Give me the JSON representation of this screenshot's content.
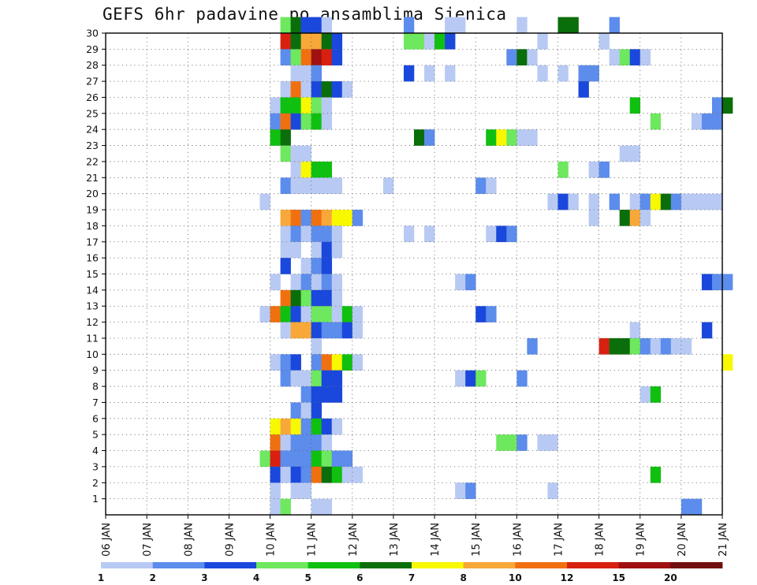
{
  "chart_data": {
    "type": "heatmap",
    "title": "GEFS 6hr padavine po ansamblima Sjenica",
    "xlabel": "",
    "ylabel": "",
    "x_ticks": [
      "06 JAN",
      "07 JAN",
      "08 JAN",
      "09 JAN",
      "10 JAN",
      "11 JAN",
      "12 JAN",
      "13 JAN",
      "14 JAN",
      "15 JAN",
      "16 JAN",
      "17 JAN",
      "18 JAN",
      "19 JAN",
      "20 JAN",
      "21 JAN"
    ],
    "y_ticks": [
      1,
      2,
      3,
      4,
      5,
      6,
      7,
      8,
      9,
      10,
      11,
      12,
      13,
      14,
      15,
      16,
      17,
      18,
      19,
      20,
      21,
      22,
      23,
      24,
      25,
      26,
      27,
      28,
      29,
      30
    ],
    "grid": "dotted",
    "colorbar": {
      "thresholds": [
        1,
        2,
        3,
        4,
        5,
        6,
        7,
        8,
        10,
        12,
        15,
        20
      ],
      "colors": [
        "#b8caf4",
        "#5c8cec",
        "#1a48dc",
        "#6ee85e",
        "#10c010",
        "#0a6e0a",
        "#f8f800",
        "#f8a838",
        "#f07010",
        "#d82010",
        "#a01010",
        "#701010"
      ]
    },
    "notes": "cells: [member, day_index(0=06 JAN), color_level 0-11] — level 0 = 1-2, 11 = >20",
    "cells": [
      [
        30,
        4.25,
        3
      ],
      [
        30,
        4.5,
        5
      ],
      [
        30,
        4.75,
        2
      ],
      [
        30,
        5,
        2
      ],
      [
        30,
        5.25,
        0
      ],
      [
        30,
        7.25,
        1
      ],
      [
        30,
        8.25,
        0
      ],
      [
        30,
        8.5,
        0
      ],
      [
        30,
        10,
        0
      ],
      [
        30,
        11,
        5
      ],
      [
        30,
        11.25,
        5
      ],
      [
        30,
        12.25,
        1
      ],
      [
        29,
        4.25,
        9
      ],
      [
        29,
        4.5,
        5
      ],
      [
        29,
        4.75,
        7
      ],
      [
        29,
        5,
        7
      ],
      [
        29,
        5.25,
        5
      ],
      [
        29,
        5.5,
        2
      ],
      [
        29,
        7.25,
        3
      ],
      [
        29,
        7.5,
        3
      ],
      [
        29,
        7.75,
        0
      ],
      [
        29,
        8,
        4
      ],
      [
        29,
        8.25,
        2
      ],
      [
        29,
        10.5,
        0
      ],
      [
        29,
        12,
        0
      ],
      [
        28,
        4.25,
        1
      ],
      [
        28,
        4.5,
        3
      ],
      [
        28,
        4.75,
        8
      ],
      [
        28,
        5,
        10
      ],
      [
        28,
        5.25,
        9
      ],
      [
        28,
        5.5,
        2
      ],
      [
        28,
        9.75,
        1
      ],
      [
        28,
        10,
        5
      ],
      [
        28,
        10.25,
        0
      ],
      [
        28,
        12.25,
        0
      ],
      [
        28,
        12.5,
        3
      ],
      [
        28,
        12.75,
        2
      ],
      [
        28,
        13,
        0
      ],
      [
        27,
        4.5,
        0
      ],
      [
        27,
        4.75,
        0
      ],
      [
        27,
        5,
        1
      ],
      [
        27,
        7.25,
        2
      ],
      [
        27,
        7.75,
        0
      ],
      [
        27,
        8.25,
        0
      ],
      [
        27,
        10.5,
        0
      ],
      [
        27,
        11,
        0
      ],
      [
        27,
        11.5,
        1
      ],
      [
        27,
        11.75,
        1
      ],
      [
        26,
        4.25,
        0
      ],
      [
        26,
        4.5,
        8
      ],
      [
        26,
        4.75,
        0
      ],
      [
        26,
        5,
        2
      ],
      [
        26,
        5.25,
        5
      ],
      [
        26,
        5.5,
        2
      ],
      [
        26,
        5.75,
        0
      ],
      [
        26,
        11.5,
        2
      ],
      [
        25,
        4,
        0
      ],
      [
        25,
        4.25,
        4
      ],
      [
        25,
        4.5,
        4
      ],
      [
        25,
        4.75,
        6
      ],
      [
        25,
        5,
        3
      ],
      [
        25,
        5.25,
        0
      ],
      [
        25,
        12.75,
        4
      ],
      [
        25,
        14.75,
        1
      ],
      [
        25,
        15,
        5
      ],
      [
        24,
        4,
        1
      ],
      [
        24,
        4.25,
        8
      ],
      [
        24,
        4.5,
        2
      ],
      [
        24,
        4.75,
        3
      ],
      [
        24,
        5,
        4
      ],
      [
        24,
        5.25,
        0
      ],
      [
        24,
        13.25,
        3
      ],
      [
        24,
        14.25,
        0
      ],
      [
        24,
        14.5,
        1
      ],
      [
        24,
        14.75,
        1
      ],
      [
        23,
        4,
        4
      ],
      [
        23,
        4.25,
        5
      ],
      [
        23,
        7.5,
        5
      ],
      [
        23,
        7.75,
        1
      ],
      [
        23,
        9.25,
        4
      ],
      [
        23,
        9.5,
        6
      ],
      [
        23,
        9.75,
        3
      ],
      [
        23,
        10,
        0
      ],
      [
        23,
        10.25,
        0
      ],
      [
        22,
        4.25,
        3
      ],
      [
        22,
        4.5,
        0
      ],
      [
        22,
        4.75,
        0
      ],
      [
        22,
        12.5,
        0
      ],
      [
        22,
        12.75,
        0
      ],
      [
        21,
        4.5,
        0
      ],
      [
        21,
        4.75,
        6
      ],
      [
        21,
        5,
        4
      ],
      [
        21,
        5.25,
        4
      ],
      [
        21,
        11,
        3
      ],
      [
        21,
        11.75,
        0
      ],
      [
        21,
        12,
        1
      ],
      [
        20,
        4.25,
        1
      ],
      [
        20,
        4.5,
        0
      ],
      [
        20,
        4.75,
        0
      ],
      [
        20,
        5,
        0
      ],
      [
        20,
        5.25,
        0
      ],
      [
        20,
        5.5,
        0
      ],
      [
        20,
        6.75,
        0
      ],
      [
        20,
        9,
        1
      ],
      [
        20,
        9.25,
        0
      ],
      [
        19,
        3.75,
        0
      ],
      [
        19,
        10.75,
        0
      ],
      [
        19,
        11,
        2
      ],
      [
        19,
        11.25,
        0
      ],
      [
        19,
        11.75,
        0
      ],
      [
        19,
        12.25,
        1
      ],
      [
        19,
        12.75,
        0
      ],
      [
        19,
        13,
        1
      ],
      [
        19,
        13.25,
        6
      ],
      [
        19,
        13.5,
        5
      ],
      [
        19,
        13.75,
        1
      ],
      [
        19,
        14,
        0
      ],
      [
        19,
        14.25,
        0
      ],
      [
        19,
        14.5,
        0
      ],
      [
        19,
        14.75,
        0
      ],
      [
        18,
        4.25,
        7
      ],
      [
        18,
        4.5,
        8
      ],
      [
        18,
        4.75,
        1
      ],
      [
        18,
        5,
        8
      ],
      [
        18,
        5.25,
        7
      ],
      [
        18,
        5.5,
        6
      ],
      [
        18,
        5.75,
        6
      ],
      [
        18,
        6,
        1
      ],
      [
        18,
        11.75,
        0
      ],
      [
        18,
        12.5,
        5
      ],
      [
        18,
        12.75,
        7
      ],
      [
        18,
        13,
        0
      ],
      [
        17,
        4.25,
        0
      ],
      [
        17,
        4.5,
        1
      ],
      [
        17,
        4.75,
        0
      ],
      [
        17,
        5,
        1
      ],
      [
        17,
        5.25,
        1
      ],
      [
        17,
        5.5,
        0
      ],
      [
        17,
        7.25,
        0
      ],
      [
        17,
        7.75,
        0
      ],
      [
        17,
        9.25,
        0
      ],
      [
        17,
        9.5,
        2
      ],
      [
        17,
        9.75,
        1
      ],
      [
        16,
        4.25,
        0
      ],
      [
        16,
        4.5,
        0
      ],
      [
        16,
        5,
        0
      ],
      [
        16,
        5.25,
        2
      ],
      [
        16,
        5.5,
        0
      ],
      [
        15,
        4.25,
        2
      ],
      [
        15,
        4.75,
        0
      ],
      [
        15,
        5,
        1
      ],
      [
        15,
        5.25,
        2
      ],
      [
        14,
        4,
        0
      ],
      [
        14,
        4.5,
        0
      ],
      [
        14,
        4.75,
        1
      ],
      [
        14,
        5,
        0
      ],
      [
        14,
        5.25,
        1
      ],
      [
        14,
        5.5,
        0
      ],
      [
        14,
        8.5,
        0
      ],
      [
        14,
        8.75,
        1
      ],
      [
        14,
        14.5,
        2
      ],
      [
        14,
        14.75,
        1
      ],
      [
        14,
        15,
        1
      ],
      [
        13,
        4.25,
        8
      ],
      [
        13,
        4.5,
        5
      ],
      [
        13,
        4.75,
        3
      ],
      [
        13,
        5,
        2
      ],
      [
        13,
        5.25,
        2
      ],
      [
        13,
        5.5,
        0
      ],
      [
        12,
        3.75,
        0
      ],
      [
        12,
        4,
        8
      ],
      [
        12,
        4.25,
        4
      ],
      [
        12,
        4.5,
        2
      ],
      [
        12,
        4.75,
        0
      ],
      [
        12,
        5,
        3
      ],
      [
        12,
        5.25,
        3
      ],
      [
        12,
        5.5,
        0
      ],
      [
        12,
        5.75,
        4
      ],
      [
        12,
        6,
        0
      ],
      [
        12,
        9,
        2
      ],
      [
        12,
        9.25,
        1
      ],
      [
        11,
        4.25,
        0
      ],
      [
        11,
        4.5,
        7
      ],
      [
        11,
        4.75,
        7
      ],
      [
        11,
        5,
        2
      ],
      [
        11,
        5.25,
        1
      ],
      [
        11,
        5.5,
        1
      ],
      [
        11,
        5.75,
        2
      ],
      [
        11,
        6,
        0
      ],
      [
        11,
        12.75,
        0
      ],
      [
        11,
        14.5,
        2
      ],
      [
        10,
        5,
        0
      ],
      [
        10,
        10.25,
        1
      ],
      [
        10,
        12,
        9
      ],
      [
        10,
        12.25,
        5
      ],
      [
        10,
        12.5,
        5
      ],
      [
        10,
        12.75,
        3
      ],
      [
        10,
        13,
        1
      ],
      [
        10,
        13.25,
        0
      ],
      [
        10,
        13.5,
        1
      ],
      [
        10,
        13.75,
        0
      ],
      [
        10,
        14,
        0
      ],
      [
        9,
        4,
        0
      ],
      [
        9,
        4.25,
        1
      ],
      [
        9,
        4.5,
        2
      ],
      [
        9,
        5,
        1
      ],
      [
        9,
        5.25,
        8
      ],
      [
        9,
        5.5,
        6
      ],
      [
        9,
        5.75,
        4
      ],
      [
        9,
        6,
        0
      ],
      [
        9,
        15,
        6
      ],
      [
        8,
        4.25,
        1
      ],
      [
        8,
        4.5,
        0
      ],
      [
        8,
        4.75,
        0
      ],
      [
        8,
        5,
        3
      ],
      [
        8,
        5.25,
        2
      ],
      [
        8,
        5.5,
        2
      ],
      [
        8,
        8.5,
        0
      ],
      [
        8,
        8.75,
        2
      ],
      [
        8,
        9,
        3
      ],
      [
        8,
        10,
        1
      ],
      [
        7,
        4.75,
        1
      ],
      [
        7,
        5,
        2
      ],
      [
        7,
        5.25,
        2
      ],
      [
        7,
        5.5,
        2
      ],
      [
        7,
        13,
        0
      ],
      [
        7,
        13.25,
        4
      ],
      [
        6,
        4.5,
        1
      ],
      [
        6,
        4.75,
        0
      ],
      [
        6,
        5,
        2
      ],
      [
        5,
        4,
        6
      ],
      [
        5,
        4.25,
        7
      ],
      [
        5,
        4.5,
        6
      ],
      [
        5,
        4.75,
        1
      ],
      [
        5,
        5,
        4
      ],
      [
        5,
        5.25,
        2
      ],
      [
        5,
        5.5,
        0
      ],
      [
        4,
        4,
        8
      ],
      [
        4,
        4.25,
        0
      ],
      [
        4,
        4.5,
        1
      ],
      [
        4,
        4.75,
        1
      ],
      [
        4,
        5,
        1
      ],
      [
        4,
        5.25,
        0
      ],
      [
        4,
        9.5,
        3
      ],
      [
        4,
        9.75,
        3
      ],
      [
        4,
        10,
        1
      ],
      [
        4,
        10.5,
        0
      ],
      [
        4,
        10.75,
        0
      ],
      [
        3,
        3.75,
        3
      ],
      [
        3,
        4,
        9
      ],
      [
        3,
        4.25,
        1
      ],
      [
        3,
        4.5,
        1
      ],
      [
        3,
        4.75,
        1
      ],
      [
        3,
        5,
        4
      ],
      [
        3,
        5.25,
        3
      ],
      [
        3,
        5.5,
        1
      ],
      [
        3,
        5.75,
        1
      ],
      [
        2,
        4,
        2
      ],
      [
        2,
        4.25,
        0
      ],
      [
        2,
        4.5,
        2
      ],
      [
        2,
        4.75,
        1
      ],
      [
        2,
        5,
        8
      ],
      [
        2,
        5.25,
        5
      ],
      [
        2,
        5.5,
        4
      ],
      [
        2,
        5.75,
        0
      ],
      [
        2,
        6,
        0
      ],
      [
        2,
        13.25,
        4
      ],
      [
        1,
        4,
        0
      ],
      [
        1,
        4.5,
        0
      ],
      [
        1,
        4.75,
        0
      ],
      [
        1,
        8.5,
        0
      ],
      [
        1,
        8.75,
        1
      ],
      [
        1,
        10.75,
        0
      ],
      [
        0,
        4,
        0
      ],
      [
        0,
        4.25,
        3
      ],
      [
        0,
        5,
        0
      ],
      [
        0,
        5.25,
        0
      ],
      [
        0,
        14,
        1
      ],
      [
        0,
        14.25,
        1
      ]
    ]
  }
}
